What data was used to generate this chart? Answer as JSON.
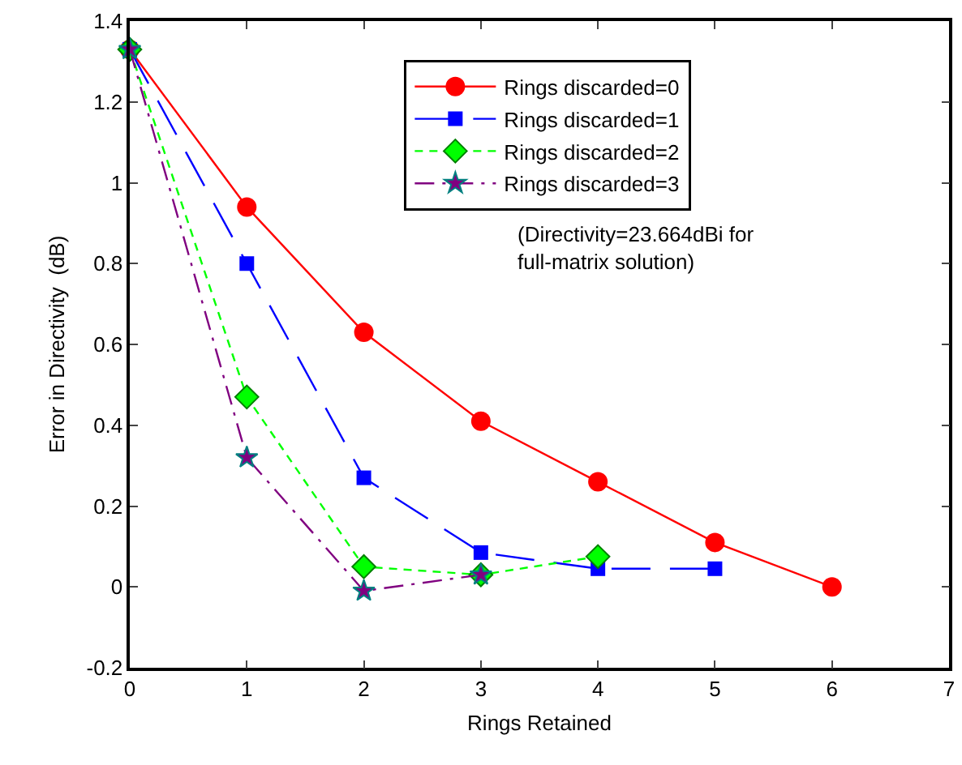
{
  "chart_data": {
    "type": "line",
    "xlabel": "Rings Retained",
    "ylabel": "Error in Directivity  (dB)",
    "xlim": [
      0,
      7
    ],
    "xticks": [
      0,
      1,
      2,
      3,
      4,
      5,
      6,
      7
    ],
    "ylim": [
      -0.2,
      1.4
    ],
    "yticks": [
      -0.2,
      0,
      0.2,
      0.4,
      0.6,
      0.8,
      1,
      1.2,
      1.4
    ],
    "grid": false,
    "legend": "top right",
    "annotations": [
      "(Directivity=23.664dBi for full-matrix solution)"
    ],
    "series": [
      {
        "name": "Rings discarded=0",
        "color": "#ff0000",
        "marker": "circle",
        "line_style": "solid",
        "x": [
          0,
          1,
          2,
          3,
          4,
          5,
          6
        ],
        "values": [
          1.33,
          0.94,
          0.63,
          0.41,
          0.26,
          0.11,
          0
        ]
      },
      {
        "name": "Rings discarded=1",
        "color": "#0000ff",
        "marker": "square",
        "line_style": "dashed",
        "x": [
          0,
          1,
          2,
          3,
          4,
          5
        ],
        "values": [
          1.33,
          0.8,
          0.27,
          0.085,
          0.045,
          0.045
        ]
      },
      {
        "name": "Rings discarded=2",
        "color": "#00ff00",
        "marker": "diamond",
        "line_style": "dotted",
        "x": [
          0,
          1,
          2,
          3,
          4
        ],
        "values": [
          1.33,
          0.47,
          0.05,
          0.03,
          0.075
        ]
      },
      {
        "name": "Rings discarded=3",
        "color": "#800080",
        "marker": "star",
        "line_style": "dashdot",
        "x": [
          0,
          1,
          2,
          3
        ],
        "values": [
          1.33,
          0.32,
          -0.01,
          0.03
        ]
      }
    ]
  }
}
